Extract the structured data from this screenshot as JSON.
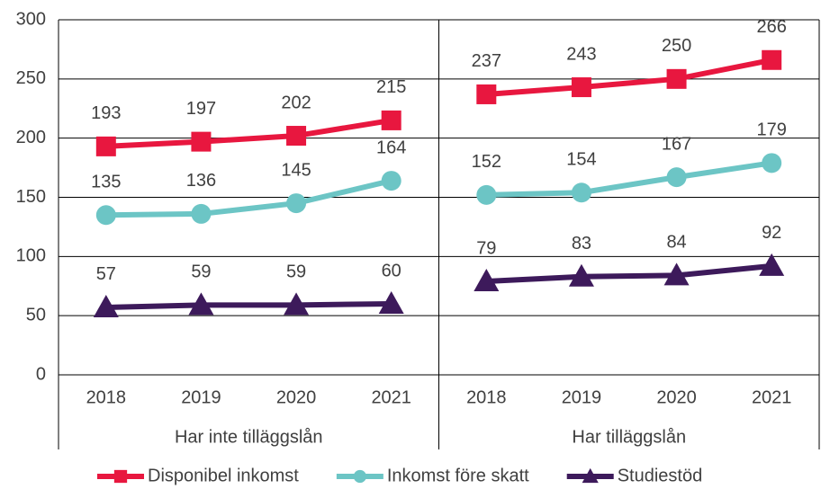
{
  "chart_data": {
    "type": "line",
    "groups": [
      {
        "name": "Har inte tilläggslån",
        "categories": [
          "2018",
          "2019",
          "2020",
          "2021"
        ]
      },
      {
        "name": "Har tilläggslån",
        "categories": [
          "2018",
          "2019",
          "2020",
          "2021"
        ]
      }
    ],
    "series": [
      {
        "name": "Disponibel inkomst",
        "color": "#e8173f",
        "marker": "square",
        "values": [
          193,
          197,
          202,
          215,
          237,
          243,
          250,
          266
        ]
      },
      {
        "name": "Inkomst före skatt",
        "color": "#6cc5c5",
        "marker": "circle",
        "values": [
          135,
          136,
          145,
          164,
          152,
          154,
          167,
          179
        ]
      },
      {
        "name": "Studiestöd",
        "color": "#3d1a5b",
        "marker": "triangle",
        "values": [
          57,
          59,
          59,
          60,
          79,
          83,
          84,
          92
        ]
      }
    ],
    "ylim": [
      0,
      300
    ],
    "yticks": [
      0,
      50,
      100,
      150,
      200,
      250,
      300
    ],
    "grid": true,
    "legend": "bottom"
  }
}
